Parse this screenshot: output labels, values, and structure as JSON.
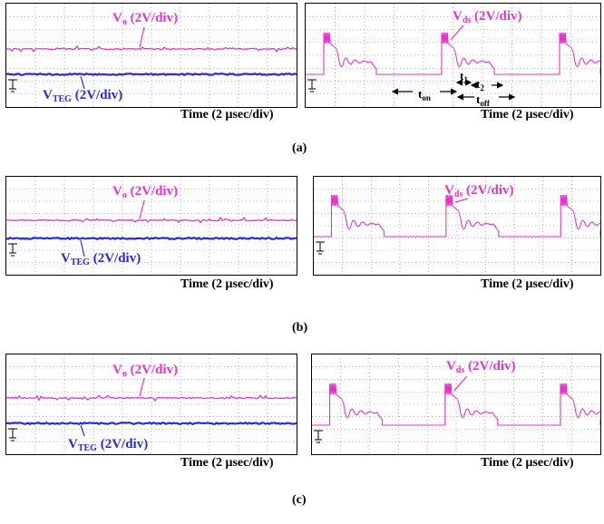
{
  "figures": [
    {
      "caption": "(a)",
      "left": {
        "vo_label": {
          "main": "V",
          "sub": "o",
          "rest": " (2V/div)"
        },
        "vteg_label": {
          "main": "V",
          "sub": "TEG",
          "rest": " (2V/div)"
        },
        "time_label": "Time (2 μsec/div)"
      },
      "right": {
        "vds_label": {
          "main": "V",
          "sub": "ds",
          "rest": " (2V/div)"
        },
        "time_label": "Time (2 μsec/div)",
        "annotations": {
          "t1": {
            "main": "t",
            "sub": "1"
          },
          "t2": {
            "main": "t",
            "sub": "2"
          },
          "ton": {
            "main": "t",
            "sub": "on"
          },
          "toff": {
            "main": "t",
            "sub": "off"
          }
        }
      }
    },
    {
      "caption": "(b)",
      "left": {
        "vo_label": {
          "main": "V",
          "sub": "o",
          "rest": " (2V/div)"
        },
        "vteg_label": {
          "main": "V",
          "sub": "TEG",
          "rest": " (2V/div)"
        },
        "time_label": "Time (2 μsec/div)"
      },
      "right": {
        "vds_label": {
          "main": "V",
          "sub": "ds",
          "rest": " (2V/div)"
        },
        "time_label": "Time (2 μsec/div)"
      }
    },
    {
      "caption": "(c)",
      "left": {
        "vo_label": {
          "main": "V",
          "sub": "o",
          "rest": " (2V/div)"
        },
        "vteg_label": {
          "main": "V",
          "sub": "TEG",
          "rest": " (2V/div)"
        },
        "time_label": "Time (2 μsec/div)"
      },
      "right": {
        "vds_label": {
          "main": "V",
          "sub": "ds",
          "rest": " (2V/div)"
        },
        "time_label": "Time (2 μsec/div)"
      }
    }
  ],
  "colors": {
    "vo": "#e633cc",
    "vteg": "#2a2ad6",
    "vds": "#e633cc",
    "grid": "#777777"
  }
}
